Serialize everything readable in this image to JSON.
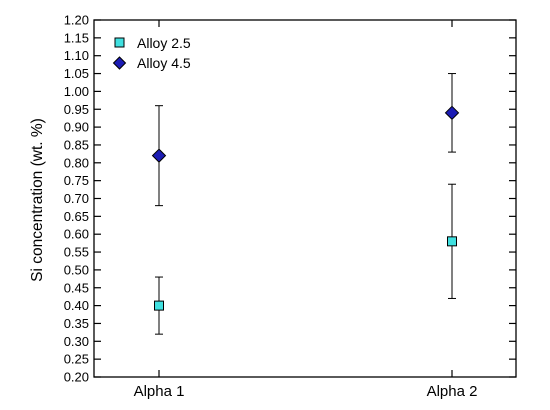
{
  "chart_data": {
    "type": "scatter",
    "title": "",
    "xlabel": "",
    "ylabel": "Si concentration (wt. %)",
    "categories": [
      "Alpha 1",
      "Alpha 2"
    ],
    "ylim": [
      0.2,
      1.2
    ],
    "ytick_step": 0.05,
    "yticks": [
      "0.20",
      "0.25",
      "0.30",
      "0.35",
      "0.40",
      "0.45",
      "0.50",
      "0.55",
      "0.60",
      "0.65",
      "0.70",
      "0.75",
      "0.80",
      "0.85",
      "0.90",
      "0.95",
      "1.00",
      "1.05",
      "1.10",
      "1.15",
      "1.20"
    ],
    "grid": false,
    "legend_position": "top-left",
    "series": [
      {
        "name": "Alloy 2.5",
        "marker": "square",
        "color": "#40e0e0",
        "edge_color": "#000000",
        "values": [
          0.4,
          0.58
        ],
        "error_low": [
          0.32,
          0.42
        ],
        "error_high": [
          0.48,
          0.74
        ]
      },
      {
        "name": "Alloy 4.5",
        "marker": "diamond",
        "color": "#1c1cb4",
        "edge_color": "#000000",
        "values": [
          0.82,
          0.94
        ],
        "error_low": [
          0.68,
          0.83
        ],
        "error_high": [
          0.96,
          1.05
        ]
      }
    ]
  }
}
